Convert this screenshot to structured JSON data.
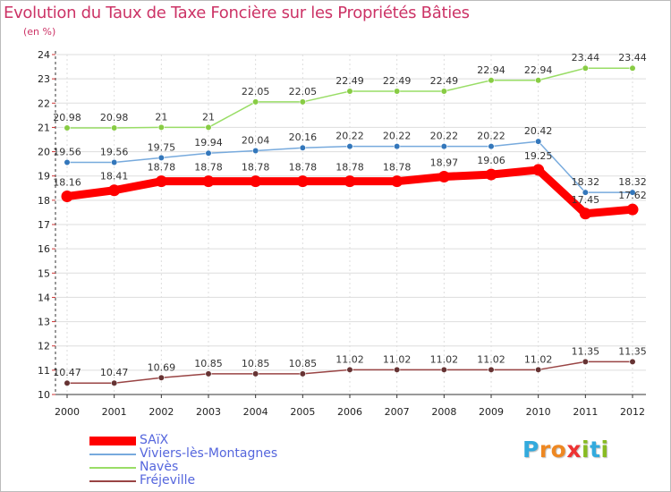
{
  "chart_data": {
    "type": "line",
    "title": "Evolution du Taux de Taxe Foncière sur les Propriétés Bâties",
    "unit_label": "(en %)",
    "x": [
      "2000",
      "2001",
      "2002",
      "2003",
      "2004",
      "2005",
      "2006",
      "2007",
      "2008",
      "2009",
      "2010",
      "2011",
      "2012"
    ],
    "ylim": [
      10,
      24
    ],
    "yticks": [
      "10",
      "11",
      "12",
      "13",
      "14",
      "15",
      "16",
      "17",
      "18",
      "19",
      "20",
      "21",
      "22",
      "23",
      "24"
    ],
    "series": [
      {
        "name": "Navès",
        "color": "#99dd66",
        "point_color": "#88cc44",
        "values": [
          20.98,
          20.98,
          21,
          21,
          22.05,
          22.05,
          22.49,
          22.49,
          22.49,
          22.94,
          22.94,
          23.44,
          23.44
        ],
        "labels": [
          "20.98",
          "20.98",
          "21",
          "21",
          "22.05",
          "22.05",
          "22.49",
          "22.49",
          "22.49",
          "22.94",
          "22.94",
          "23.44",
          "23.44"
        ]
      },
      {
        "name": "Viviers-lès-Montagnes",
        "color": "#77aadd",
        "point_color": "#3377bb",
        "values": [
          19.56,
          19.56,
          19.75,
          19.94,
          20.04,
          20.16,
          20.22,
          20.22,
          20.22,
          20.22,
          20.42,
          18.32,
          18.32
        ],
        "labels": [
          "19.56",
          "19.56",
          "19.75",
          "19.94",
          "20.04",
          "20.16",
          "20.22",
          "20.22",
          "20.22",
          "20.22",
          "20.42",
          "18.32",
          "18.32"
        ]
      },
      {
        "name": "SAïX",
        "color": "#ff0000",
        "point_color": "#ff0000",
        "values": [
          18.16,
          18.41,
          18.78,
          18.78,
          18.78,
          18.78,
          18.78,
          18.78,
          18.97,
          19.06,
          19.25,
          17.45,
          17.62
        ],
        "labels": [
          "18.16",
          "18.41",
          "18.78",
          "18.78",
          "18.78",
          "18.78",
          "18.78",
          "18.78",
          "18.97",
          "19.06",
          "19.25",
          "17.45",
          "17.62"
        ]
      },
      {
        "name": "Fréjeville",
        "color": "#994444",
        "point_color": "#663333",
        "values": [
          10.47,
          10.47,
          10.69,
          10.85,
          10.85,
          10.85,
          11.02,
          11.02,
          11.02,
          11.02,
          11.02,
          11.35,
          11.35
        ],
        "labels": [
          "10.47",
          "10.47",
          "10.69",
          "10.85",
          "10.85",
          "10.85",
          "11.02",
          "11.02",
          "11.02",
          "11.02",
          "11.02",
          "11.35",
          "11.35"
        ]
      }
    ]
  },
  "legend": {
    "items": [
      {
        "name": "SAïX",
        "color": "#ff0000"
      },
      {
        "name": "Viviers-lès-Montagnes",
        "color": "#77aadd"
      },
      {
        "name": "Navès",
        "color": "#99dd66"
      },
      {
        "name": "Fréjeville",
        "color": "#994444"
      }
    ]
  },
  "logo": {
    "letters": [
      "P",
      "r",
      "o",
      "x",
      "i",
      "t",
      "i"
    ],
    "colors": [
      "#33aadd",
      "#ee8822",
      "#ee8822",
      "#ee3333",
      "#88bb22",
      "#33aadd",
      "#88bb22"
    ]
  }
}
